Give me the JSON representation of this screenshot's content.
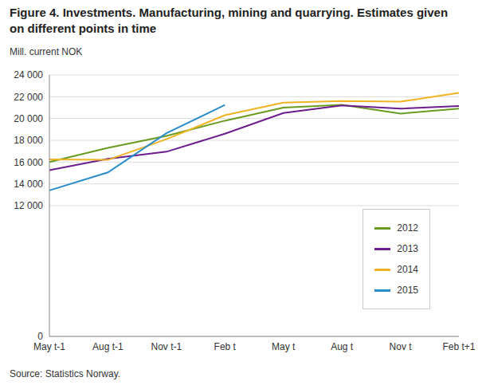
{
  "chart_data": {
    "type": "line",
    "title": "Figure 4. Investments. Manufacturing, mining and quarrying. Estimates given on different points in time",
    "subtitle": "Mill. current NOK",
    "source": "Source: Statistics Norway.",
    "categories": [
      "May t-1",
      "Aug t-1",
      "Nov t-1",
      "Feb t",
      "May t",
      "Aug t",
      "Nov t",
      "Feb t+1"
    ],
    "series": [
      {
        "name": "2012",
        "color": "#6a9a1f",
        "values": [
          16000,
          17300,
          18400,
          19800,
          21000,
          21250,
          20450,
          20900
        ]
      },
      {
        "name": "2013",
        "color": "#6c1d8e",
        "values": [
          15250,
          16300,
          16950,
          18600,
          20500,
          21200,
          20900,
          21150
        ]
      },
      {
        "name": "2014",
        "color": "#f0b323",
        "values": [
          16250,
          16200,
          18100,
          20300,
          21450,
          21600,
          21550,
          22350
        ]
      },
      {
        "name": "2015",
        "color": "#2a8cc8",
        "values": [
          13400,
          15050,
          18650,
          21250,
          null,
          null,
          null,
          null
        ]
      }
    ],
    "ylim": [
      0,
      24000
    ],
    "yticks": [
      0,
      {
        "value": 12000,
        "label": "12 000"
      },
      {
        "value": 14000,
        "label": "14 000"
      },
      {
        "value": 16000,
        "label": "16 000"
      },
      {
        "value": 18000,
        "label": "18 000"
      },
      {
        "value": 20000,
        "label": "20 000"
      },
      {
        "value": 22000,
        "label": "22 000"
      },
      {
        "value": 24000,
        "label": "24 000"
      }
    ],
    "grid": true,
    "legend": "lower right"
  }
}
